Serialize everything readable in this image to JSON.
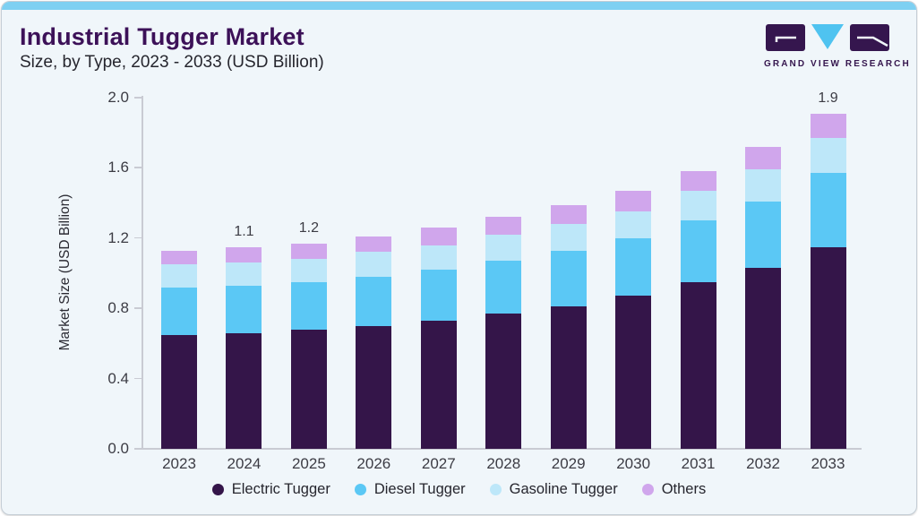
{
  "header": {
    "title": "Industrial Tugger Market",
    "subtitle": "Size, by Type, 2023 - 2033 (USD Billion)"
  },
  "logo": {
    "text": "GRAND VIEW RESEARCH"
  },
  "colors": {
    "card_background": "#f0f6fa",
    "top_strip": "#7ed0f2",
    "card_border": "#c5ced6",
    "title_text": "#3c1158",
    "body_text": "#26262e",
    "axis_text": "#3c3c44",
    "axis_line": "#c9cbd3",
    "logo_purple": "#35164e",
    "logo_blue": "#4fc3f0"
  },
  "chart_data": {
    "type": "bar",
    "stacked": true,
    "title": "Industrial Tugger Market",
    "subtitle": "Size, by Type, 2023 - 2033 (USD Billion)",
    "xlabel": "",
    "ylabel": "Market Size (USD Billion)",
    "ylim": [
      0,
      2.0
    ],
    "yticks": [
      0.0,
      0.4,
      0.8,
      1.2,
      1.6,
      2.0
    ],
    "grid": false,
    "legend_position": "bottom",
    "categories": [
      "2023",
      "2024",
      "2025",
      "2026",
      "2027",
      "2028",
      "2029",
      "2030",
      "2031",
      "2032",
      "2033"
    ],
    "series": [
      {
        "name": "Electric Tugger",
        "color": "#341549",
        "values": [
          0.65,
          0.66,
          0.68,
          0.7,
          0.73,
          0.77,
          0.81,
          0.87,
          0.95,
          1.03,
          1.15
        ]
      },
      {
        "name": "Diesel Tugger",
        "color": "#5bc8f5",
        "values": [
          0.27,
          0.27,
          0.27,
          0.28,
          0.29,
          0.3,
          0.32,
          0.33,
          0.35,
          0.38,
          0.42
        ]
      },
      {
        "name": "Gasoline Tugger",
        "color": "#bde7f9",
        "values": [
          0.13,
          0.13,
          0.13,
          0.14,
          0.14,
          0.15,
          0.15,
          0.15,
          0.17,
          0.18,
          0.2
        ]
      },
      {
        "name": "Others",
        "color": "#d0a6ec",
        "values": [
          0.08,
          0.09,
          0.09,
          0.09,
          0.1,
          0.1,
          0.11,
          0.12,
          0.11,
          0.13,
          0.14
        ]
      }
    ],
    "bar_total_labels": [
      "",
      "1.1",
      "1.2",
      "",
      "",
      "",
      "",
      "",
      "",
      "",
      "1.9"
    ],
    "totals_approx": [
      1.13,
      1.15,
      1.17,
      1.21,
      1.26,
      1.32,
      1.39,
      1.47,
      1.58,
      1.72,
      1.91
    ]
  }
}
